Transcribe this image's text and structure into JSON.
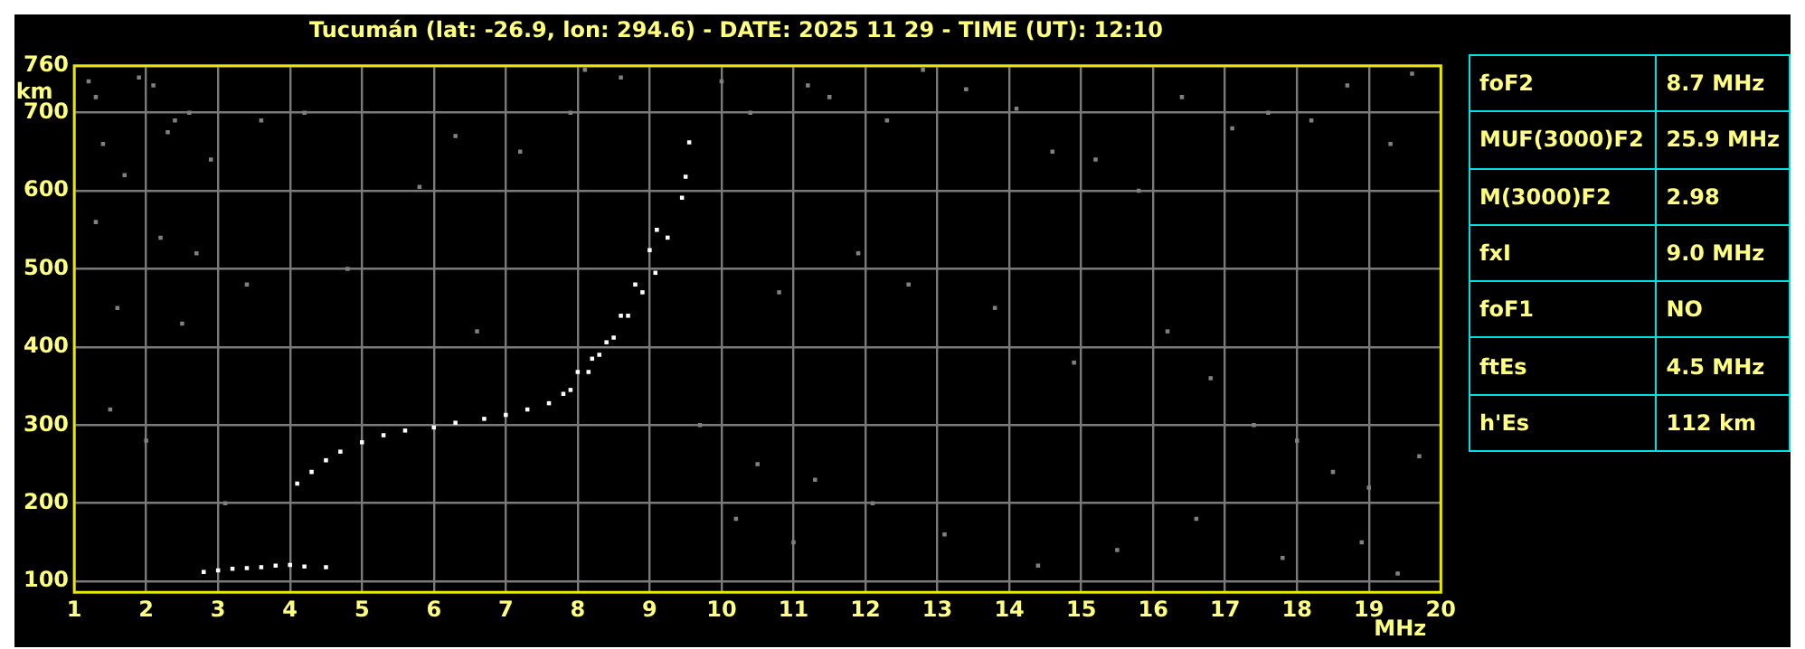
{
  "chart_data": {
    "type": "scatter",
    "title": "Tucumán (lat: -26.9, lon: 294.6) - DATE: 2025 11 29 - TIME (UT): 12:10",
    "xlabel": "MHz",
    "ylabel": "km",
    "xlim": [
      1,
      20
    ],
    "ylim": [
      86,
      760
    ],
    "xticks": [
      1,
      2,
      3,
      4,
      5,
      6,
      7,
      8,
      9,
      10,
      11,
      12,
      13,
      14,
      15,
      16,
      17,
      18,
      19,
      20
    ],
    "yticks": [
      100,
      200,
      300,
      400,
      500,
      600,
      700,
      760
    ],
    "grid": true,
    "legend": false,
    "marker": "square",
    "series": [
      {
        "color": "#ffffff",
        "x": [
          4.1,
          4.3,
          4.5,
          4.7,
          5.0,
          5.3,
          5.6,
          6.0,
          6.3,
          6.7,
          7.0,
          7.3,
          7.6,
          7.8,
          8.0,
          8.2,
          8.4,
          8.6,
          8.8,
          9.0,
          9.1
        ],
        "values": [
          225,
          240,
          255,
          266,
          278,
          287,
          293,
          297,
          303,
          308,
          313,
          320,
          328,
          340,
          368,
          385,
          406,
          440,
          480,
          524,
          550
        ]
      },
      {
        "color": "#ffffff",
        "x": [
          7.9,
          8.15,
          8.3,
          8.5,
          8.7,
          8.9,
          9.08,
          9.25,
          9.45,
          9.5,
          9.55
        ],
        "values": [
          345,
          368,
          390,
          412,
          440,
          470,
          495,
          540,
          591,
          618,
          662
        ]
      },
      {
        "color": "#ffffff",
        "x": [
          2.8,
          3.0,
          3.2,
          3.4,
          3.6,
          3.8,
          4.0,
          4.2,
          4.5
        ],
        "values": [
          112,
          114,
          116,
          117,
          118,
          120,
          121,
          119,
          118
        ]
      },
      {
        "color": "#808080",
        "x": [
          1.2,
          1.3,
          1.9,
          2.1,
          2.4,
          2.6,
          1.4,
          2.3,
          1.7,
          2.9,
          3.6,
          4.2,
          5.8,
          6.3,
          7.2,
          7.9,
          8.1,
          8.6,
          10.0,
          10.4,
          11.2,
          11.5,
          12.3,
          12.8,
          13.4,
          14.1,
          14.6,
          15.2,
          15.8,
          16.4,
          17.1,
          17.6,
          18.2,
          18.7,
          19.3,
          19.6,
          1.3,
          2.2,
          2.7,
          3.4,
          1.6,
          2.5,
          4.8,
          6.6,
          10.8,
          11.9,
          12.6,
          13.8,
          14.9,
          16.2,
          16.8,
          17.4,
          18.0,
          18.5,
          19.0,
          19.7,
          10.2,
          11.0,
          12.1,
          13.1,
          14.4,
          15.5,
          16.6,
          17.8,
          18.9,
          19.4,
          1.5,
          2.0,
          3.1,
          9.7,
          10.5,
          11.3
        ],
        "values": [
          740,
          720,
          745,
          735,
          690,
          700,
          660,
          675,
          620,
          640,
          690,
          700,
          605,
          670,
          650,
          700,
          755,
          745,
          740,
          700,
          735,
          720,
          690,
          755,
          730,
          705,
          650,
          640,
          600,
          720,
          680,
          700,
          690,
          735,
          660,
          750,
          560,
          540,
          520,
          480,
          450,
          430,
          500,
          420,
          470,
          520,
          480,
          450,
          380,
          420,
          360,
          300,
          280,
          240,
          220,
          260,
          180,
          150,
          200,
          160,
          120,
          140,
          180,
          130,
          150,
          110,
          320,
          280,
          200,
          300,
          250,
          230
        ]
      }
    ],
    "annotations": [
      "foF2",
      "8.7 MHz",
      "MUF(3000)F2",
      "25.9 MHz",
      "M(3000)F2",
      "2.98",
      "fxI",
      "9.0 MHz",
      "foF1",
      "NO",
      "ftEs",
      "4.5 MHz",
      "h'Es",
      "112 km"
    ]
  }
}
